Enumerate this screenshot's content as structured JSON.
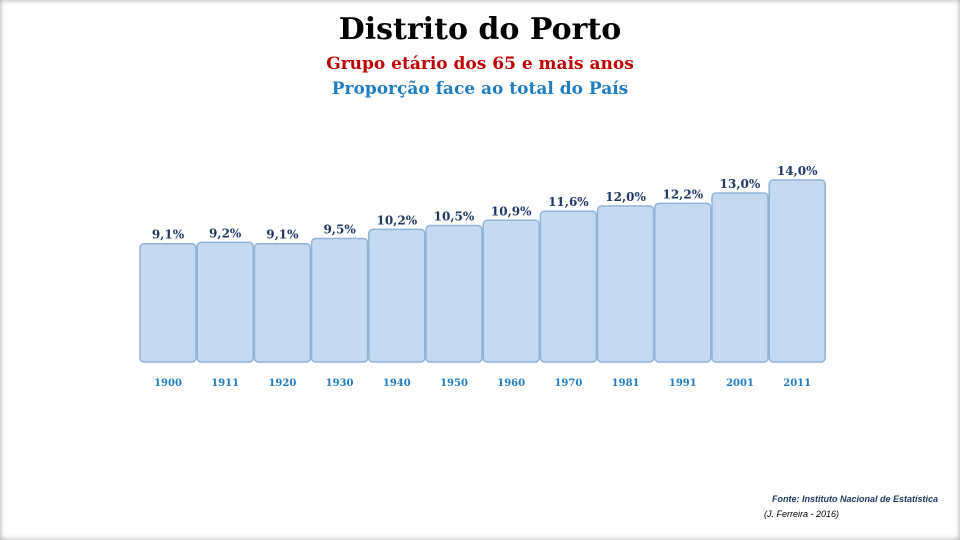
{
  "header": {
    "title": "Distrito do Porto",
    "subtitle": "Grupo etário dos 65 e mais anos",
    "subtitle2": "Proporção face ao total do País"
  },
  "footer": {
    "source": "Fonte: Instituto Nacional de Estatística",
    "author": "(J. Ferreira - 2016)"
  },
  "colors": {
    "bar_fill": "#c5daf0",
    "bar_stroke": "#8fb3d9",
    "title": "#000000",
    "subtitle": "#c00000",
    "subtitle2": "#1f7dc4",
    "value_label": "#1f3864",
    "tick_label": "#1f7dc4"
  },
  "chart_data": {
    "type": "bar",
    "categories": [
      "1900",
      "1911",
      "1920",
      "1930",
      "1940",
      "1950",
      "1960",
      "1970",
      "1981",
      "1991",
      "2001",
      "2011"
    ],
    "values": [
      9.1,
      9.2,
      9.1,
      9.5,
      10.2,
      10.5,
      10.9,
      11.6,
      12.0,
      12.2,
      13.0,
      14.0
    ],
    "value_labels": [
      "9,1%",
      "9,2%",
      "9,1%",
      "9,5%",
      "10,2%",
      "10,5%",
      "10,9%",
      "11,6%",
      "12,0%",
      "12,2%",
      "13,0%",
      "14,0%"
    ],
    "title": "Distrito do Porto",
    "xlabel": "",
    "ylabel": "",
    "ylim": [
      0,
      14
    ],
    "grid": false,
    "legend": "none"
  }
}
